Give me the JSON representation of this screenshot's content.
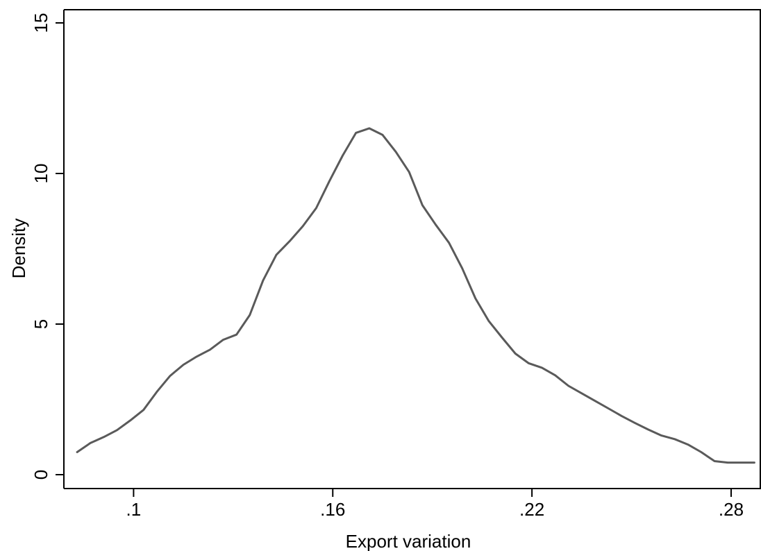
{
  "chart_data": {
    "type": "line",
    "title": "",
    "xlabel": "Export variation",
    "ylabel": "Density",
    "xlim": [
      0.079,
      0.289
    ],
    "ylim": [
      0,
      15
    ],
    "x_ticks": [
      {
        "value": 0.1,
        "label": ".1"
      },
      {
        "value": 0.16,
        "label": ".16"
      },
      {
        "value": 0.22,
        "label": ".22"
      },
      {
        "value": 0.28,
        "label": ".28"
      }
    ],
    "y_ticks": [
      {
        "value": 0,
        "label": "0"
      },
      {
        "value": 5,
        "label": "5"
      },
      {
        "value": 10,
        "label": "10"
      },
      {
        "value": 15,
        "label": "15"
      }
    ],
    "grid": false,
    "line_color": "#5a5a5a",
    "series": [
      {
        "x": [
          0.083,
          0.087,
          0.091,
          0.095,
          0.099,
          0.103,
          0.107,
          0.111,
          0.115,
          0.119,
          0.123,
          0.127,
          0.131,
          0.135,
          0.139,
          0.143,
          0.147,
          0.151,
          0.155,
          0.159,
          0.163,
          0.167,
          0.171,
          0.175,
          0.179,
          0.183,
          0.187,
          0.191,
          0.195,
          0.199,
          0.203,
          0.207,
          0.211,
          0.215,
          0.219,
          0.223,
          0.227,
          0.231,
          0.235,
          0.239,
          0.243,
          0.247,
          0.251,
          0.255,
          0.259,
          0.263,
          0.267,
          0.271,
          0.275,
          0.279,
          0.283,
          0.287
        ],
        "y": [
          0.75,
          1.05,
          1.25,
          1.48,
          1.8,
          2.15,
          2.75,
          3.28,
          3.65,
          3.92,
          4.15,
          4.48,
          4.65,
          5.3,
          6.45,
          7.3,
          7.75,
          8.25,
          8.85,
          9.75,
          10.6,
          11.35,
          11.5,
          11.28,
          10.72,
          10.05,
          8.95,
          8.3,
          7.7,
          6.85,
          5.85,
          5.1,
          4.55,
          4.02,
          3.7,
          3.55,
          3.3,
          2.95,
          2.7,
          2.45,
          2.2,
          1.95,
          1.72,
          1.5,
          1.3,
          1.18,
          1.0,
          0.75,
          0.45,
          0.4,
          0.4,
          0.4
        ]
      }
    ]
  }
}
